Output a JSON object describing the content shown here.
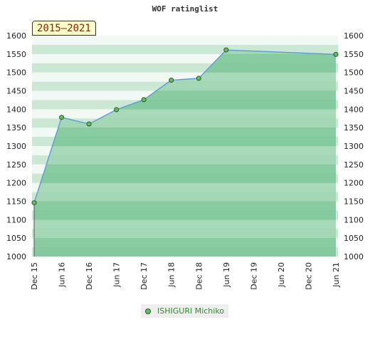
{
  "chart_data": {
    "type": "area",
    "title": "WOF ratinglist",
    "period_label": "2015–2021",
    "x": [
      "2015-12",
      "2016-06",
      "2016-12",
      "2017-06",
      "2017-12",
      "2018-06",
      "2018-12",
      "2019-06",
      "2021-06"
    ],
    "x_tick_labels": [
      "Dec 15",
      "Jun 16",
      "Dec 16",
      "Jun 17",
      "Dec 17",
      "Jun 18",
      "Dec 18",
      "Jun 19",
      "Dec 19",
      "Jun 20",
      "Dec 20",
      "Jun 21"
    ],
    "y_tick_labels": [
      "1000",
      "1050",
      "1100",
      "1150",
      "1200",
      "1250",
      "1300",
      "1350",
      "1400",
      "1450",
      "1500",
      "1550",
      "1600"
    ],
    "series": [
      {
        "name": "ISHIGURI Michiko",
        "values": [
          1146,
          1378,
          1360,
          1399,
          1426,
          1479,
          1484,
          1561,
          1549
        ]
      }
    ],
    "ylim": [
      1000,
      1600
    ],
    "xlim": [
      "2015-12",
      "2021-06"
    ],
    "y_axis_both_sides": true,
    "legend_position": "bottom",
    "colors": {
      "fill_dark": "#7ac596",
      "fill_light": "#9dd4b0",
      "background_light": "#f2f9f4",
      "background_mid": "#cbe8d5",
      "line": "#5b9bd5",
      "marker": "#6cb86c",
      "marker_edge": "#1f5c1f",
      "legend_text": "#2f8a2f"
    }
  }
}
